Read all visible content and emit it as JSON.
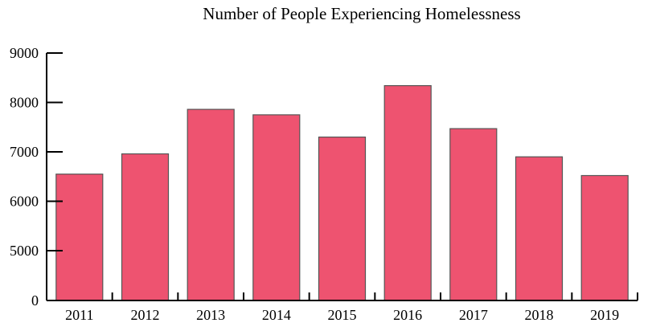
{
  "chart_data": {
    "type": "bar",
    "title": "Number of People Experiencing Homelessness",
    "xlabel": "",
    "ylabel": "",
    "categories": [
      "2011",
      "2012",
      "2013",
      "2014",
      "2015",
      "2016",
      "2017",
      "2018",
      "2019"
    ],
    "values": [
      6550,
      6960,
      7860,
      7750,
      7300,
      8340,
      7470,
      6900,
      6520
    ],
    "ylim": [
      0,
      9000
    ],
    "yticks": [
      "0",
      "5000",
      "6000",
      "7000",
      "8000",
      "9000"
    ],
    "grid": false,
    "legend": "none",
    "colors": {
      "bar_fill": "#ee5370",
      "bar_stroke": "#555555",
      "axis": "#000000"
    }
  }
}
